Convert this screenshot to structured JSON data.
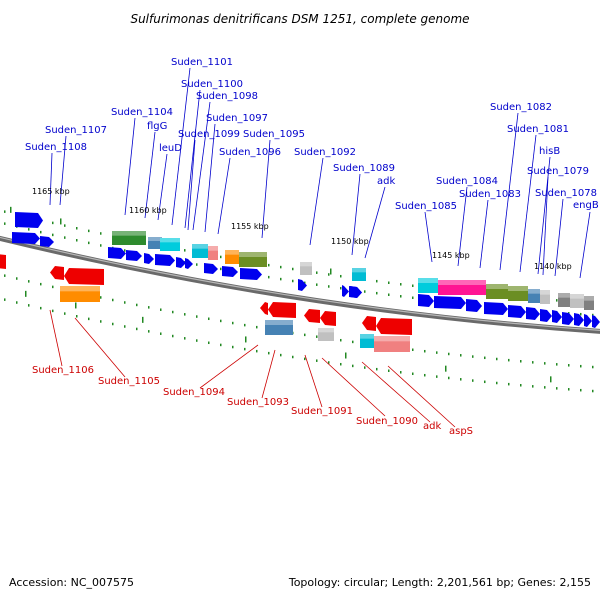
{
  "title": "Sulfurimonas denitrificans DSM 1251, complete genome",
  "footer": {
    "accession": "Accession: NC_007575",
    "topology": "Topology: circular; Length: 2,201,561 bp; Genes: 2,155"
  },
  "colors": {
    "forward_label": "#0000cc",
    "reverse_label": "#cc0000",
    "forward_gene": "#0000ee",
    "reverse_gene": "#ee0000",
    "backbone": "#808080",
    "tick": "#228822"
  },
  "kbp_labels": [
    "1165 kbp",
    "1160 kbp",
    "1155 kbp",
    "1150 kbp",
    "1145 kbp",
    "1140 kbp"
  ],
  "forward_labels": [
    "Suden_1108",
    "Suden_1107",
    "Suden_1104",
    "flgG",
    "leuD",
    "Suden_1101",
    "Suden_1100",
    "Suden_1098",
    "Suden_1099",
    "Suden_1097",
    "Suden_1096",
    "Suden_1095",
    "Suden_1092",
    "Suden_1089",
    "adk",
    "Suden_1085",
    "Suden_1084",
    "Suden_1083",
    "Suden_1082",
    "Suden_1081",
    "hisB",
    "Suden_1079",
    "Suden_1078",
    "engB"
  ],
  "reverse_labels": [
    "Suden_1106",
    "Suden_1105",
    "Suden_1094",
    "Suden_1093",
    "Suden_1091",
    "Suden_1090",
    "adk",
    "aspS"
  ]
}
